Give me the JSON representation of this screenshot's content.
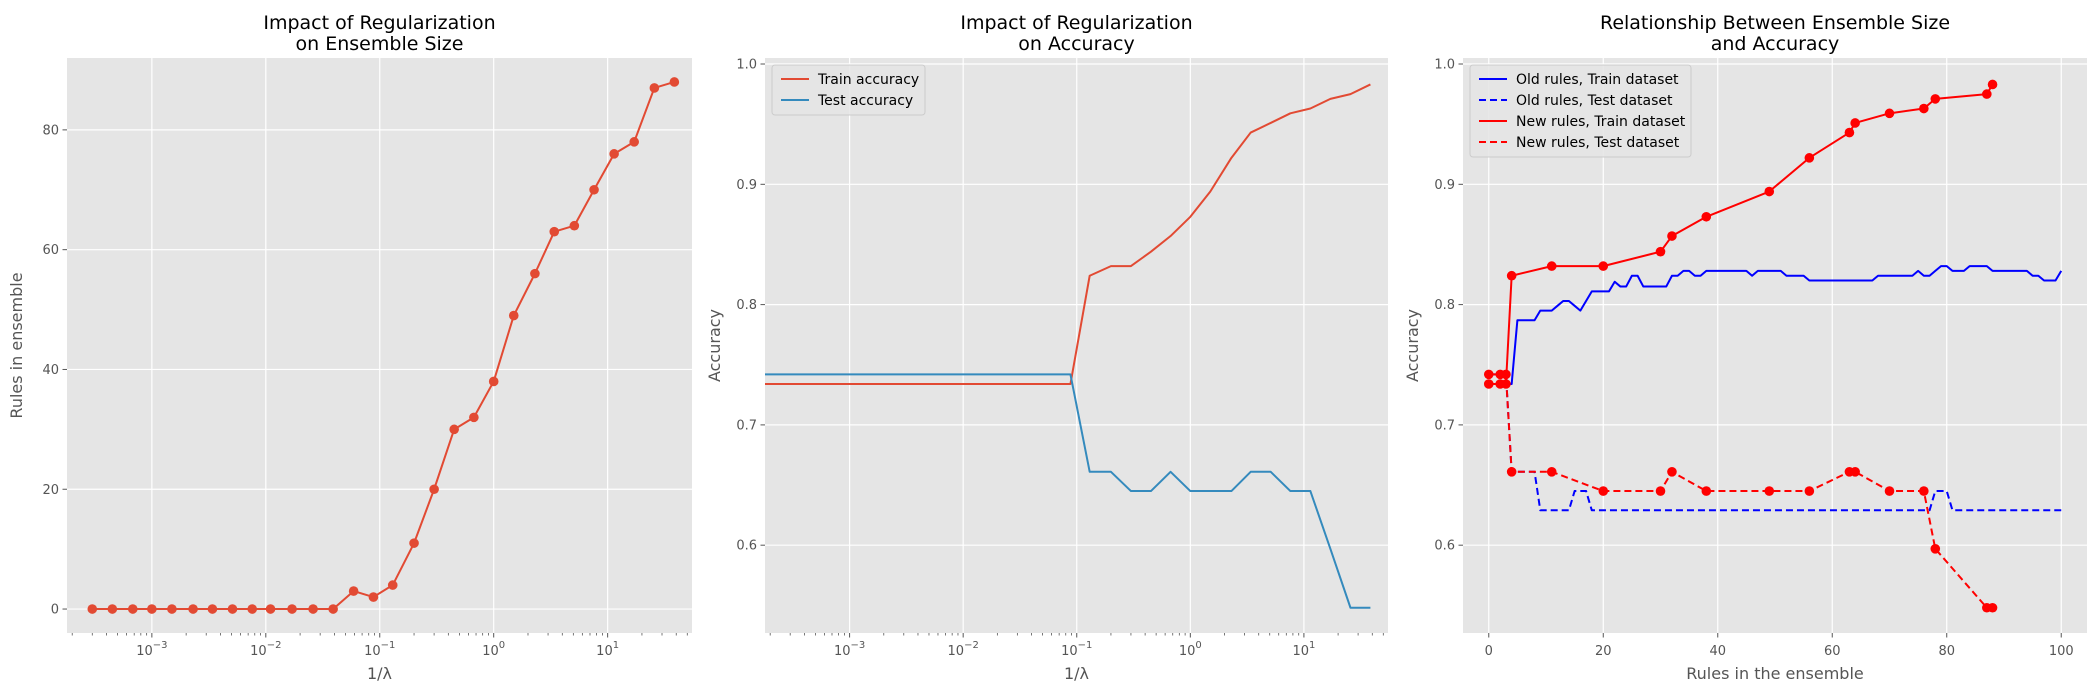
{
  "chart_data": [
    {
      "type": "line",
      "title": [
        "Impact of Regularization",
        "on Ensemble Size"
      ],
      "xlabel": "1/λ",
      "ylabel": "Rules in ensemble",
      "xscale": "log",
      "xlim": [
        0.00018,
        55
      ],
      "ylim": [
        -4,
        92
      ],
      "xticks": [
        0.001,
        0.01,
        0.1,
        1,
        10
      ],
      "xtick_labels": [
        {
          "base": "10",
          "exp": "−3"
        },
        {
          "base": "10",
          "exp": "−2"
        },
        {
          "base": "10",
          "exp": "−1"
        },
        {
          "base": "10",
          "exp": "0"
        },
        {
          "base": "10",
          "exp": "1"
        }
      ],
      "yticks": [
        0,
        20,
        40,
        60,
        80
      ],
      "ytick_labels": [
        "0",
        "20",
        "40",
        "60",
        "80"
      ],
      "grid": true,
      "series": [
        {
          "color": "#E24A33",
          "style": "solid",
          "markers": true,
          "x": [
            0.0003,
            0.00045,
            0.00068,
            0.001,
            0.0015,
            0.0023,
            0.0034,
            0.0051,
            0.0076,
            0.011,
            0.017,
            0.026,
            0.039,
            0.059,
            0.088,
            0.13,
            0.2,
            0.3,
            0.45,
            0.67,
            1.0,
            1.5,
            2.3,
            3.4,
            5.1,
            7.6,
            11.4,
            17.1,
            25.7,
            38.5
          ],
          "y": [
            0,
            0,
            0,
            0,
            0,
            0,
            0,
            0,
            0,
            0,
            0,
            0,
            0,
            3,
            2,
            4,
            11,
            20,
            30,
            32,
            38,
            49,
            56,
            63,
            64,
            70,
            76,
            78,
            87,
            88
          ]
        }
      ]
    },
    {
      "type": "line",
      "title": [
        "Impact of Regularization",
        "on Accuracy"
      ],
      "xlabel": "1/λ",
      "ylabel": "Accuracy",
      "xscale": "log",
      "xlim": [
        0.00018,
        55
      ],
      "ylim": [
        0.527,
        1.005
      ],
      "xticks": [
        0.001,
        0.01,
        0.1,
        1,
        10
      ],
      "xtick_labels": [
        {
          "base": "10",
          "exp": "−3"
        },
        {
          "base": "10",
          "exp": "−2"
        },
        {
          "base": "10",
          "exp": "−1"
        },
        {
          "base": "10",
          "exp": "0"
        },
        {
          "base": "10",
          "exp": "1"
        }
      ],
      "yticks": [
        0.6,
        0.7,
        0.8,
        0.9,
        1.0
      ],
      "ytick_labels": [
        "0.6",
        "0.7",
        "0.8",
        "0.9",
        "1.0"
      ],
      "grid": true,
      "legend": "top-left",
      "series": [
        {
          "name": "Train accuracy",
          "color": "#E24A33",
          "style": "solid",
          "markers": false,
          "x": [
            0.00018,
            0.0003,
            0.001,
            0.01,
            0.05,
            0.088,
            0.13,
            0.2,
            0.3,
            0.45,
            0.67,
            1.0,
            1.5,
            2.3,
            3.4,
            5.1,
            7.6,
            11.4,
            17.1,
            25.7,
            38.5
          ],
          "y": [
            0.734,
            0.734,
            0.734,
            0.734,
            0.734,
            0.734,
            0.824,
            0.832,
            0.832,
            0.844,
            0.857,
            0.873,
            0.894,
            0.922,
            0.943,
            0.951,
            0.959,
            0.963,
            0.971,
            0.975,
            0.983
          ]
        },
        {
          "name": "Test accuracy",
          "color": "#348ABD",
          "style": "solid",
          "markers": false,
          "x": [
            0.00018,
            0.0003,
            0.001,
            0.01,
            0.05,
            0.088,
            0.13,
            0.2,
            0.3,
            0.45,
            0.67,
            1.0,
            1.5,
            2.3,
            3.4,
            5.1,
            7.6,
            11.4,
            17.1,
            25.7,
            38.5
          ],
          "y": [
            0.742,
            0.742,
            0.742,
            0.742,
            0.742,
            0.742,
            0.661,
            0.661,
            0.645,
            0.645,
            0.661,
            0.645,
            0.645,
            0.645,
            0.661,
            0.661,
            0.645,
            0.645,
            0.597,
            0.548,
            0.548
          ]
        }
      ]
    },
    {
      "type": "line",
      "title": [
        "Relationship Between Ensemble Size",
        "and Accuracy"
      ],
      "xlabel": "Rules in the ensemble",
      "ylabel": "Accuracy",
      "xscale": "linear",
      "xlim": [
        -4.5,
        104.5
      ],
      "ylim": [
        0.527,
        1.005
      ],
      "xticks": [
        0,
        20,
        40,
        60,
        80,
        100
      ],
      "xtick_labels": [
        "0",
        "20",
        "40",
        "60",
        "80",
        "100"
      ],
      "yticks": [
        0.6,
        0.7,
        0.8,
        0.9,
        1.0
      ],
      "ytick_labels": [
        "0.6",
        "0.7",
        "0.8",
        "0.9",
        "1.0"
      ],
      "grid": true,
      "legend": "top-left",
      "series": [
        {
          "name": "Old rules, Train dataset",
          "color": "#0000FF",
          "style": "solid",
          "markers": false,
          "x": [
            0,
            1,
            2,
            3,
            4,
            5,
            6,
            7,
            8,
            9,
            10,
            11,
            12,
            13,
            14,
            15,
            16,
            17,
            18,
            19,
            20,
            21,
            22,
            23,
            24,
            25,
            26,
            27,
            28,
            29,
            30,
            31,
            32,
            33,
            34,
            35,
            36,
            37,
            38,
            39,
            40,
            41,
            42,
            43,
            44,
            45,
            46,
            47,
            48,
            49,
            50,
            51,
            52,
            53,
            54,
            55,
            56,
            57,
            58,
            59,
            60,
            61,
            62,
            63,
            64,
            65,
            66,
            67,
            68,
            69,
            70,
            71,
            72,
            73,
            74,
            75,
            76,
            77,
            78,
            79,
            80,
            81,
            82,
            83,
            84,
            85,
            86,
            87,
            88,
            89,
            90,
            91,
            92,
            93,
            94,
            95,
            96,
            97,
            98,
            99,
            100
          ],
          "y": [
            0.734,
            0.734,
            0.734,
            0.734,
            0.734,
            0.787,
            0.787,
            0.787,
            0.787,
            0.795,
            0.795,
            0.795,
            0.799,
            0.803,
            0.803,
            0.799,
            0.795,
            0.803,
            0.811,
            0.811,
            0.811,
            0.811,
            0.819,
            0.815,
            0.815,
            0.824,
            0.824,
            0.815,
            0.815,
            0.815,
            0.815,
            0.815,
            0.824,
            0.824,
            0.828,
            0.828,
            0.824,
            0.824,
            0.828,
            0.828,
            0.828,
            0.828,
            0.828,
            0.828,
            0.828,
            0.828,
            0.824,
            0.828,
            0.828,
            0.828,
            0.828,
            0.828,
            0.824,
            0.824,
            0.824,
            0.824,
            0.82,
            0.82,
            0.82,
            0.82,
            0.82,
            0.82,
            0.82,
            0.82,
            0.82,
            0.82,
            0.82,
            0.82,
            0.824,
            0.824,
            0.824,
            0.824,
            0.824,
            0.824,
            0.824,
            0.828,
            0.824,
            0.824,
            0.828,
            0.832,
            0.832,
            0.828,
            0.828,
            0.828,
            0.832,
            0.832,
            0.832,
            0.832,
            0.828,
            0.828,
            0.828,
            0.828,
            0.828,
            0.828,
            0.828,
            0.824,
            0.824,
            0.82,
            0.82,
            0.82,
            0.828
          ]
        },
        {
          "name": "Old rules, Test dataset",
          "color": "#0000FF",
          "style": "dashed",
          "markers": false,
          "x": [
            0,
            2,
            3,
            4,
            5,
            6,
            7,
            8,
            9,
            10,
            11,
            12,
            13,
            14,
            15,
            16,
            17,
            18,
            19,
            20,
            30,
            40,
            50,
            60,
            70,
            76,
            77,
            78,
            79,
            80,
            81,
            90,
            100
          ],
          "y": [
            0.742,
            0.742,
            0.742,
            0.661,
            0.661,
            0.661,
            0.661,
            0.661,
            0.629,
            0.629,
            0.629,
            0.629,
            0.629,
            0.629,
            0.645,
            0.645,
            0.645,
            0.629,
            0.629,
            0.629,
            0.629,
            0.629,
            0.629,
            0.629,
            0.629,
            0.629,
            0.629,
            0.645,
            0.645,
            0.645,
            0.629,
            0.629,
            0.629
          ]
        },
        {
          "name": "New rules, Train dataset",
          "color": "#FF0000",
          "style": "solid",
          "markers": true,
          "x": [
            0,
            2,
            3,
            4,
            11,
            20,
            30,
            32,
            38,
            49,
            56,
            63,
            64,
            70,
            76,
            78,
            87,
            88
          ],
          "y": [
            0.734,
            0.734,
            0.734,
            0.824,
            0.832,
            0.832,
            0.844,
            0.857,
            0.873,
            0.894,
            0.922,
            0.943,
            0.951,
            0.959,
            0.963,
            0.971,
            0.975,
            0.983
          ]
        },
        {
          "name": "New rules, Test dataset",
          "color": "#FF0000",
          "style": "dashed",
          "markers": true,
          "x": [
            0,
            2,
            3,
            4,
            11,
            20,
            30,
            32,
            38,
            49,
            56,
            63,
            64,
            70,
            76,
            78,
            87,
            88
          ],
          "y": [
            0.742,
            0.742,
            0.742,
            0.661,
            0.661,
            0.645,
            0.645,
            0.661,
            0.645,
            0.645,
            0.645,
            0.661,
            0.661,
            0.645,
            0.645,
            0.597,
            0.548,
            0.548
          ]
        }
      ]
    }
  ]
}
